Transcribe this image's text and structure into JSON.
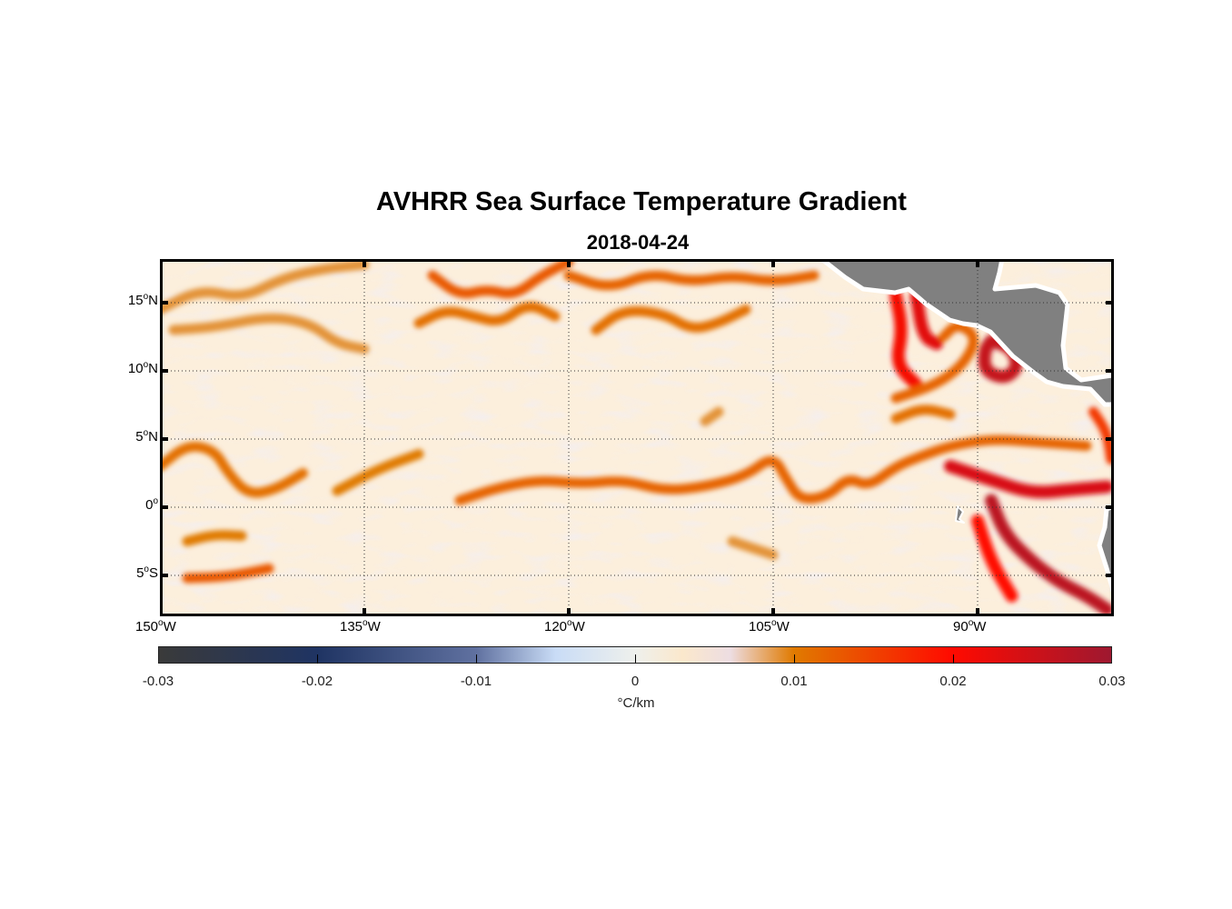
{
  "chart_data": {
    "type": "heatmap",
    "title": "AVHRR Sea Surface Temperature Gradient",
    "subtitle": "2018-04-24",
    "xlim": [
      -150,
      -80
    ],
    "ylim": [
      -8,
      18.2
    ],
    "grid": true,
    "x_ticks": [
      {
        "value": -150,
        "deg": "150",
        "hem": "W"
      },
      {
        "value": -135,
        "deg": "135",
        "hem": "W"
      },
      {
        "value": -120,
        "deg": "120",
        "hem": "W"
      },
      {
        "value": -105,
        "deg": "105",
        "hem": "W"
      },
      {
        "value": -90,
        "deg": "90",
        "hem": "W"
      }
    ],
    "y_ticks": [
      {
        "value": 15,
        "deg": "15",
        "hem": "N"
      },
      {
        "value": 10,
        "deg": "10",
        "hem": "N"
      },
      {
        "value": 5,
        "deg": "5",
        "hem": "N"
      },
      {
        "value": 0,
        "deg": "0",
        "hem": ""
      },
      {
        "value": -5,
        "deg": "5",
        "hem": "S"
      }
    ],
    "colorbar": {
      "label": "°C/km",
      "range": [
        -0.03,
        0.03
      ],
      "ticks": [
        "-0.03",
        "-0.02",
        "-0.01",
        "0",
        "0.01",
        "0.02",
        "0.03"
      ],
      "tick_values": [
        -0.03,
        -0.02,
        -0.01,
        0,
        0.01,
        0.02,
        0.03
      ],
      "stops": [
        [
          -0.03,
          "#3a3a3a"
        ],
        [
          -0.02,
          "#1f3463"
        ],
        [
          -0.01,
          "#6071a0"
        ],
        [
          -0.005,
          "#c9dcf6"
        ],
        [
          0,
          "#eef0ec"
        ],
        [
          0.003,
          "#fbe8cc"
        ],
        [
          0.006,
          "#eddde2"
        ],
        [
          0.01,
          "#e07a00"
        ],
        [
          0.02,
          "#ff0a00"
        ],
        [
          0.03,
          "#9e1830"
        ]
      ]
    },
    "land_color": "#808080",
    "background_value": 0.003,
    "fronts": [
      {
        "value": 0.011,
        "points": [
          [
            -150,
            3.0
          ],
          [
            -148,
            4.6
          ],
          [
            -146,
            4.2
          ],
          [
            -145,
            2.5
          ],
          [
            -143.5,
            0.9
          ],
          [
            -141.5,
            1.3
          ],
          [
            -139.5,
            2.5
          ]
        ]
      },
      {
        "value": 0.01,
        "points": [
          [
            -137,
            1.2
          ],
          [
            -134,
            2.8
          ],
          [
            -131,
            3.9
          ]
        ]
      },
      {
        "value": 0.012,
        "points": [
          [
            -128,
            0.5
          ],
          [
            -125,
            1.5
          ],
          [
            -122,
            2.0
          ],
          [
            -119,
            1.7
          ],
          [
            -116,
            2.0
          ],
          [
            -113,
            1.2
          ],
          [
            -110,
            1.5
          ],
          [
            -107,
            2.3
          ],
          [
            -105,
            3.8
          ],
          [
            -104,
            2.0
          ],
          [
            -103,
            0.5
          ],
          [
            -101,
            0.8
          ],
          [
            -99.5,
            2.2
          ],
          [
            -98,
            1.5
          ],
          [
            -96,
            3.0
          ],
          [
            -94,
            3.8
          ],
          [
            -92,
            4.5
          ],
          [
            -89,
            5.0
          ],
          [
            -86,
            4.8
          ],
          [
            -82,
            4.5
          ]
        ]
      },
      {
        "value": 0.024,
        "points": [
          [
            -92,
            3
          ],
          [
            -89,
            2
          ],
          [
            -86,
            1
          ],
          [
            -83,
            1.3
          ],
          [
            -80.5,
            1.5
          ]
        ]
      },
      {
        "value": 0.027,
        "points": [
          [
            -89,
            0.5
          ],
          [
            -88,
            -2
          ],
          [
            -86,
            -4
          ],
          [
            -84,
            -5.5
          ],
          [
            -82,
            -6.5
          ],
          [
            -80.5,
            -7.5
          ]
        ]
      },
      {
        "value": 0.02,
        "points": [
          [
            -90,
            -1
          ],
          [
            -89,
            -4
          ],
          [
            -87.5,
            -6.5
          ]
        ]
      },
      {
        "value": 0.009,
        "points": [
          [
            -150,
            14.5
          ],
          [
            -147,
            16
          ],
          [
            -144,
            15.3
          ],
          [
            -141,
            16.8
          ],
          [
            -138,
            17.5
          ],
          [
            -135,
            17.8
          ]
        ]
      },
      {
        "value": 0.009,
        "points": [
          [
            -149,
            13
          ],
          [
            -146,
            13.2
          ],
          [
            -142,
            14
          ],
          [
            -139,
            13.5
          ],
          [
            -137,
            12
          ],
          [
            -135,
            11.6
          ]
        ]
      },
      {
        "value": 0.013,
        "points": [
          [
            -130,
            17
          ],
          [
            -128,
            15.5
          ],
          [
            -126,
            16
          ],
          [
            -124,
            15.5
          ],
          [
            -122,
            17
          ],
          [
            -120,
            18
          ]
        ]
      },
      {
        "value": 0.011,
        "points": [
          [
            -131,
            13.5
          ],
          [
            -129,
            14.5
          ],
          [
            -127,
            14
          ],
          [
            -125,
            13.5
          ],
          [
            -123,
            15
          ],
          [
            -121,
            14
          ]
        ]
      },
      {
        "value": 0.012,
        "points": [
          [
            -120,
            17
          ],
          [
            -117,
            16
          ],
          [
            -114,
            17.2
          ],
          [
            -111,
            16.5
          ],
          [
            -108,
            17
          ],
          [
            -105,
            16.5
          ],
          [
            -102,
            17
          ]
        ]
      },
      {
        "value": 0.011,
        "points": [
          [
            -118,
            13
          ],
          [
            -116,
            14.5
          ],
          [
            -113,
            14.2
          ],
          [
            -111,
            13
          ],
          [
            -109,
            13.5
          ],
          [
            -107,
            14.5
          ]
        ]
      },
      {
        "value": 0.021,
        "points": [
          [
            -96,
            15.5
          ],
          [
            -95.5,
            13
          ],
          [
            -96,
            10.5
          ],
          [
            -94.5,
            9
          ]
        ]
      },
      {
        "value": 0.023,
        "points": [
          [
            -94.5,
            15.5
          ],
          [
            -94,
            12.5
          ],
          [
            -93,
            12
          ]
        ]
      },
      {
        "value": 0.026,
        "points": [
          [
            -89,
            12.2
          ],
          [
            -87.5,
            11.7
          ],
          [
            -87,
            10.3
          ],
          [
            -88,
            9.4
          ],
          [
            -89.5,
            10
          ],
          [
            -89.5,
            11.5
          ],
          [
            -89,
            12.2
          ]
        ]
      },
      {
        "value": 0.012,
        "points": [
          [
            -96,
            8
          ],
          [
            -93,
            9
          ],
          [
            -91,
            10.5
          ],
          [
            -90,
            12.5
          ],
          [
            -91.5,
            13.5
          ],
          [
            -92.5,
            12.5
          ]
        ]
      },
      {
        "value": 0.011,
        "points": [
          [
            -96,
            6.5
          ],
          [
            -94,
            7.3
          ],
          [
            -92,
            6.8
          ]
        ]
      },
      {
        "value": 0.01,
        "points": [
          [
            -148,
            -2.5
          ],
          [
            -146,
            -2
          ],
          [
            -144,
            -2.1
          ]
        ]
      },
      {
        "value": 0.013,
        "points": [
          [
            -148,
            -5.2
          ],
          [
            -145,
            -5.1
          ],
          [
            -142,
            -4.5
          ]
        ]
      },
      {
        "value": 0.009,
        "points": [
          [
            -110,
            6.3
          ],
          [
            -109,
            7
          ]
        ]
      },
      {
        "value": 0.009,
        "points": [
          [
            -108,
            -2.5
          ],
          [
            -105,
            -3.5
          ]
        ]
      },
      {
        "value": 0.016,
        "points": [
          [
            -81.5,
            7
          ],
          [
            -80.5,
            5.5
          ],
          [
            -80.2,
            3.5
          ]
        ]
      }
    ]
  }
}
